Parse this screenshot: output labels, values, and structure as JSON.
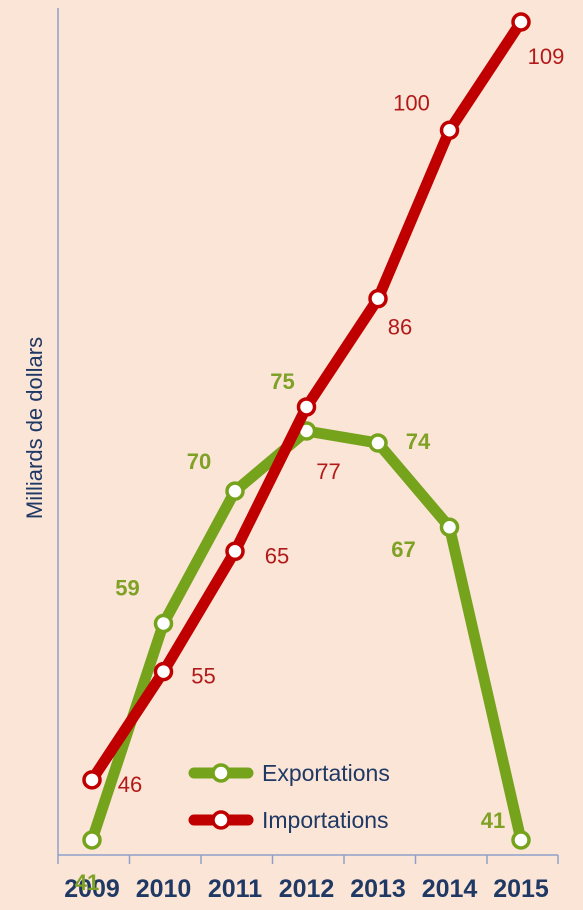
{
  "chart_data": {
    "type": "line",
    "categories": [
      "2009",
      "2010",
      "2011",
      "2012",
      "2013",
      "2014",
      "2015"
    ],
    "ylabel": "Milliards de dollars",
    "xlabel": "",
    "title": "",
    "ylim": [
      41,
      109
    ],
    "grid": false,
    "legend_position": "bottom-center",
    "series": [
      {
        "name": "Exportations",
        "color": "#76a31c",
        "label_color": "#7ea126",
        "values": [
          41,
          59,
          70,
          75,
          74,
          67,
          41
        ]
      },
      {
        "name": "Importations",
        "color": "#c00000",
        "label_color": "#b21a1a",
        "values": [
          46,
          55,
          65,
          77,
          86,
          100,
          109
        ]
      }
    ]
  }
}
